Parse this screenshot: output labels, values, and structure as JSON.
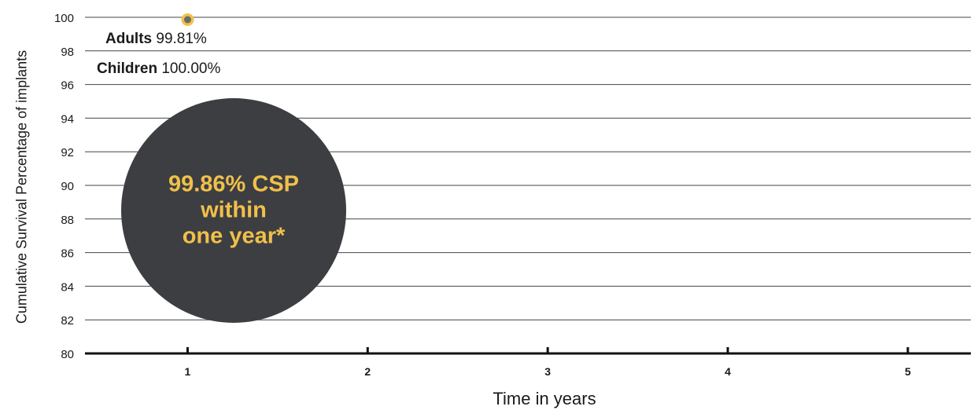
{
  "chart_data": {
    "type": "scatter",
    "xlabel": "Time in years",
    "ylabel": "Cumulative Survival Percentage of implants",
    "x_ticks": [
      "1",
      "2",
      "3",
      "4",
      "5"
    ],
    "y_ticks": [
      "80",
      "82",
      "84",
      "86",
      "88",
      "90",
      "92",
      "94",
      "96",
      "98",
      "100"
    ],
    "xlim": [
      0.43,
      5.35
    ],
    "ylim": [
      80,
      100
    ],
    "grid": "horizontal",
    "series": [
      {
        "x": [
          1
        ],
        "values": [
          99.86
        ]
      }
    ],
    "annotations": {
      "adults": {
        "label": "Adults",
        "value": "99.81%"
      },
      "children": {
        "label": "Children",
        "value": "100.00%"
      },
      "callout": [
        "99.86% CSP",
        "within",
        "one year*"
      ]
    }
  },
  "colors": {
    "accent": "#f0c04a",
    "point": "#6b6b6b",
    "bubble": "#3d3e42",
    "axis": "#111111",
    "grid": "#444444"
  }
}
